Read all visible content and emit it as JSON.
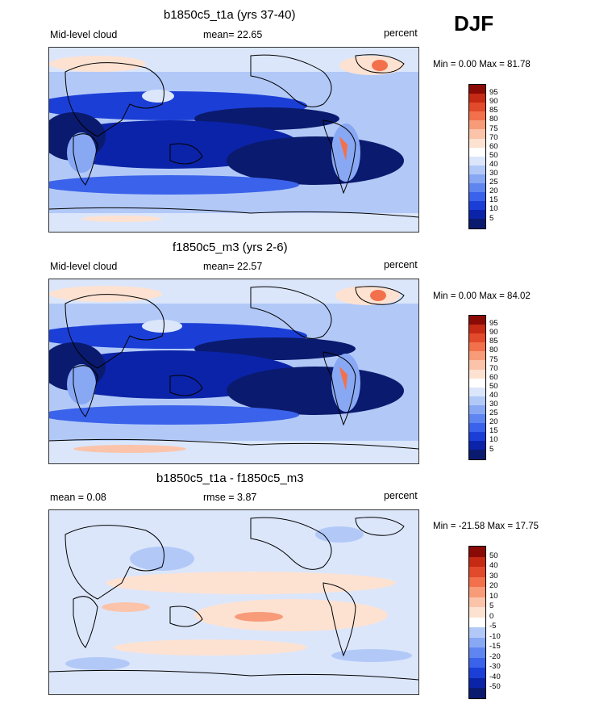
{
  "season": "DJF",
  "colors": {
    "levels": [
      "#0a1a6e",
      "#0b23a8",
      "#1b3fd6",
      "#3a62ea",
      "#5f86f0",
      "#88a8f4",
      "#b2c9f8",
      "#dbe6fb",
      "#ffffff",
      "#fde2d2",
      "#fbc4aa",
      "#f89b79",
      "#f2714c",
      "#e14a2a",
      "#c42a14",
      "#8a0a06"
    ],
    "ocean_low": "#0a1a6e",
    "land": "#f3ece2"
  },
  "panels": [
    {
      "title": "b1850c5_t1a (yrs 37-40)",
      "left_label": "Mid-level cloud",
      "stat": "mean=  22.65",
      "units": "percent",
      "minmax": "Min =   0.00 Max =  81.78",
      "levels": [
        "95",
        "90",
        "85",
        "80",
        "75",
        "70",
        "60",
        "50",
        "40",
        "30",
        "25",
        "20",
        "15",
        "10",
        "5"
      ]
    },
    {
      "title": "f1850c5_m3 (yrs 2-6)",
      "left_label": "Mid-level cloud",
      "stat": "mean=  22.57",
      "units": "percent",
      "minmax": "Min =   0.00 Max =  84.02",
      "levels": [
        "95",
        "90",
        "85",
        "80",
        "75",
        "70",
        "60",
        "50",
        "40",
        "30",
        "25",
        "20",
        "15",
        "10",
        "5"
      ]
    },
    {
      "title": "b1850c5_t1a - f1850c5_m3",
      "left_label": "mean =   0.08",
      "stat": "rmse =   3.87",
      "units": "percent",
      "minmax": "Min = -21.58 Max =  17.75",
      "levels": [
        "50",
        "40",
        "30",
        "20",
        "10",
        "5",
        "0",
        "-5",
        "-10",
        "-15",
        "-20",
        "-30",
        "-40",
        "-50"
      ]
    }
  ],
  "chart_data": [
    {
      "type": "heatmap",
      "title": "b1850c5_t1a (yrs 37-40)",
      "variable": "Mid-level cloud",
      "units": "percent",
      "mean": 22.65,
      "min": 0.0,
      "max": 81.78,
      "contour_levels": [
        5,
        10,
        15,
        20,
        25,
        30,
        40,
        50,
        60,
        70,
        75,
        80,
        85,
        90,
        95
      ]
    },
    {
      "type": "heatmap",
      "title": "f1850c5_m3 (yrs 2-6)",
      "variable": "Mid-level cloud",
      "units": "percent",
      "mean": 22.57,
      "min": 0.0,
      "max": 84.02,
      "contour_levels": [
        5,
        10,
        15,
        20,
        25,
        30,
        40,
        50,
        60,
        70,
        75,
        80,
        85,
        90,
        95
      ]
    },
    {
      "type": "heatmap",
      "title": "b1850c5_t1a - f1850c5_m3",
      "units": "percent",
      "mean": 0.08,
      "rmse": 3.87,
      "min": -21.58,
      "max": 17.75,
      "contour_levels": [
        -50,
        -40,
        -30,
        -20,
        -15,
        -10,
        -5,
        0,
        5,
        10,
        20,
        30,
        40,
        50
      ]
    }
  ]
}
